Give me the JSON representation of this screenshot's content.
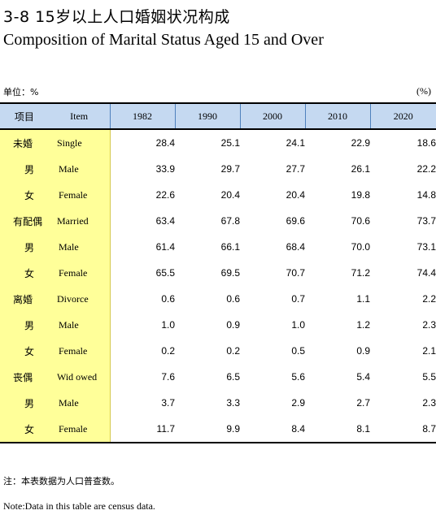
{
  "title": {
    "cn": "3-8  15岁以上人口婚姻状况构成",
    "en": "Composition of Marital Status Aged 15 and Over"
  },
  "unit": {
    "left": "单位：%",
    "right": "(%)"
  },
  "table": {
    "headers": {
      "item_cn": "项目",
      "item_en": "Item",
      "years": [
        "1982",
        "1990",
        "2000",
        "2010",
        "2020"
      ]
    },
    "rows": [
      {
        "cn": "未婚",
        "en": "Single",
        "indent": false,
        "values": [
          "28.4",
          "25.1",
          "24.1",
          "22.9",
          "18.6"
        ]
      },
      {
        "cn": "男",
        "en": "Male",
        "indent": true,
        "values": [
          "33.9",
          "29.7",
          "27.7",
          "26.1",
          "22.2"
        ]
      },
      {
        "cn": "女",
        "en": "Female",
        "indent": true,
        "values": [
          "22.6",
          "20.4",
          "20.4",
          "19.8",
          "14.8"
        ]
      },
      {
        "cn": "有配偶",
        "en": "Married",
        "indent": false,
        "values": [
          "63.4",
          "67.8",
          "69.6",
          "70.6",
          "73.7"
        ]
      },
      {
        "cn": "男",
        "en": "Male",
        "indent": true,
        "values": [
          "61.4",
          "66.1",
          "68.4",
          "70.0",
          "73.1"
        ]
      },
      {
        "cn": "女",
        "en": "Female",
        "indent": true,
        "values": [
          "65.5",
          "69.5",
          "70.7",
          "71.2",
          "74.4"
        ]
      },
      {
        "cn": "离婚",
        "en": "Divorce",
        "indent": false,
        "values": [
          "0.6",
          "0.6",
          "0.7",
          "1.1",
          "2.2"
        ]
      },
      {
        "cn": "男",
        "en": "Male",
        "indent": true,
        "values": [
          "1.0",
          "0.9",
          "1.0",
          "1.2",
          "2.3"
        ]
      },
      {
        "cn": "女",
        "en": "Female",
        "indent": true,
        "values": [
          "0.2",
          "0.2",
          "0.5",
          "0.9",
          "2.1"
        ]
      },
      {
        "cn": "丧偶",
        "en": "Wid owed",
        "indent": false,
        "values": [
          "7.6",
          "6.5",
          "5.6",
          "5.4",
          "5.5"
        ]
      },
      {
        "cn": "男",
        "en": "Male",
        "indent": true,
        "values": [
          "3.7",
          "3.3",
          "2.9",
          "2.7",
          "2.3"
        ]
      },
      {
        "cn": "女",
        "en": "Female",
        "indent": true,
        "values": [
          "11.7",
          "9.9",
          "8.4",
          "8.1",
          "8.7"
        ]
      }
    ]
  },
  "notes": {
    "cn": "注：本表数据为人口普查数。",
    "en": "Note:Data in this table are census data."
  }
}
